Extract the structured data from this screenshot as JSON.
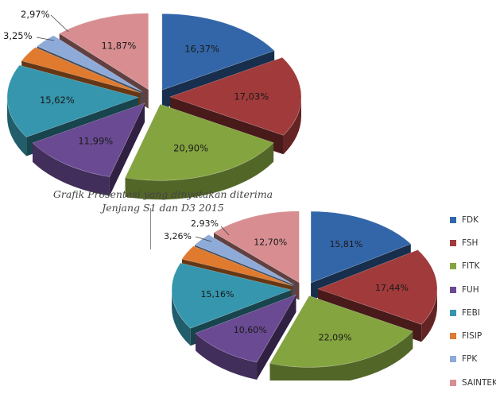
{
  "chart_data": [
    {
      "type": "pie",
      "title": "",
      "categories": [
        "FDK",
        "FSH",
        "FITK",
        "FUH",
        "FEBI",
        "FISIP",
        "FPK",
        "SAINTEK"
      ],
      "values": [
        16.37,
        17.03,
        20.9,
        11.99,
        15.62,
        3.25,
        2.97,
        11.87
      ],
      "labels": [
        "16,37%",
        "17,03%",
        "20,90%",
        "11,99%",
        "15,62%",
        "3,25%",
        "2,97%",
        "11,87%"
      ]
    },
    {
      "type": "pie",
      "title": "",
      "categories": [
        "FDK",
        "FSH",
        "FITK",
        "FUH",
        "FEBI",
        "FISIP",
        "FPK",
        "SAINTEK"
      ],
      "values": [
        15.81,
        17.44,
        22.09,
        10.6,
        15.16,
        3.26,
        2.93,
        12.7
      ],
      "labels": [
        "15,81%",
        "17,44%",
        "22,09%",
        "10,60%",
        "15,16%",
        "3,26%",
        "2,93%",
        "12,70%"
      ]
    }
  ],
  "caption": {
    "line1": "Grafik Prosentasi yang dinyatakan diterima",
    "line2": "Jenjang S1 dan D3 2015"
  },
  "legend": [
    {
      "label": "FDK",
      "color": "#3366a8"
    },
    {
      "label": "FSH",
      "color": "#a13a3a"
    },
    {
      "label": "FITK",
      "color": "#84a43f"
    },
    {
      "label": "FUH",
      "color": "#6a4a92"
    },
    {
      "label": "FEBI",
      "color": "#3596ad"
    },
    {
      "label": "FISIP",
      "color": "#e07a2e"
    },
    {
      "label": "FPK",
      "color": "#8eaad8"
    },
    {
      "label": "SAINTEK",
      "color": "#d88e91"
    }
  ]
}
